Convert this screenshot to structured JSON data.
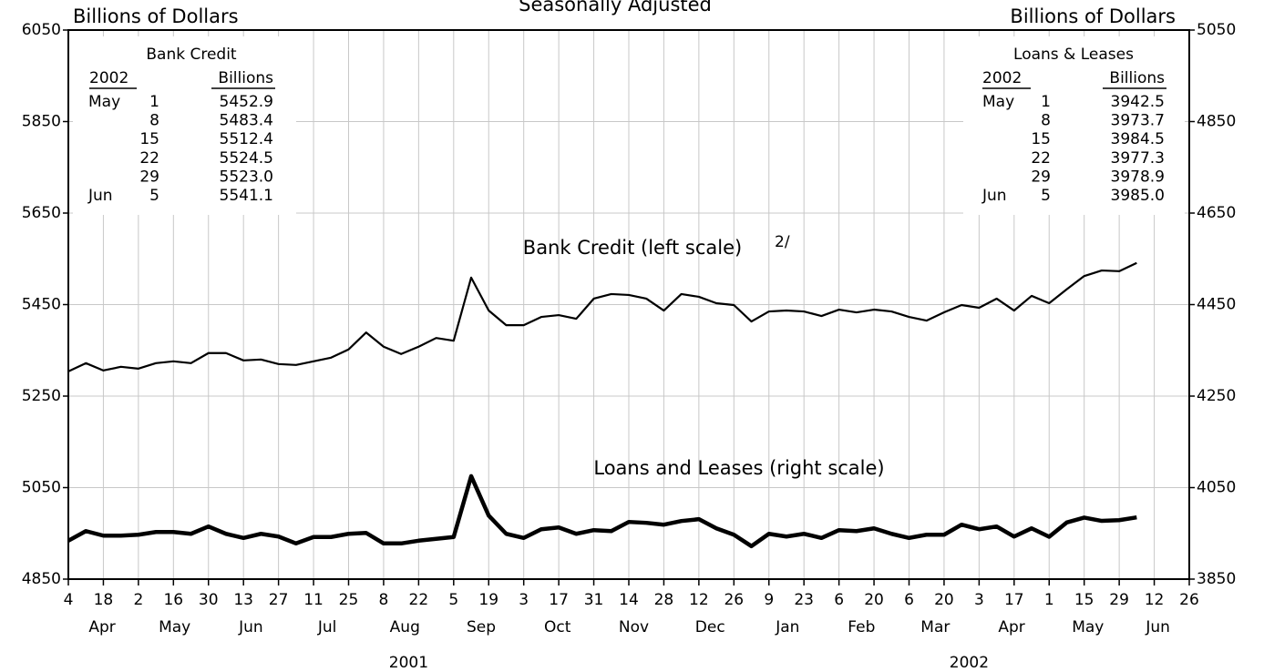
{
  "chart_data": {
    "type": "line",
    "title": "Seasonally Adjusted",
    "y_label": "Billions of Dollars",
    "y2_label": "Billions of Dollars",
    "x": [
      "2001-04-04",
      "2001-04-11",
      "2001-04-18",
      "2001-04-25",
      "2001-05-02",
      "2001-05-09",
      "2001-05-16",
      "2001-05-23",
      "2001-05-30",
      "2001-06-06",
      "2001-06-13",
      "2001-06-20",
      "2001-06-27",
      "2001-07-04",
      "2001-07-11",
      "2001-07-18",
      "2001-07-25",
      "2001-08-01",
      "2001-08-08",
      "2001-08-15",
      "2001-08-22",
      "2001-08-29",
      "2001-09-05",
      "2001-09-12",
      "2001-09-19",
      "2001-09-26",
      "2001-10-03",
      "2001-10-10",
      "2001-10-17",
      "2001-10-24",
      "2001-10-31",
      "2001-11-07",
      "2001-11-14",
      "2001-11-21",
      "2001-11-28",
      "2001-12-05",
      "2001-12-12",
      "2001-12-19",
      "2001-12-26",
      "2002-01-02",
      "2002-01-09",
      "2002-01-16",
      "2002-01-23",
      "2002-01-30",
      "2002-02-06",
      "2002-02-13",
      "2002-02-20",
      "2002-02-27",
      "2002-03-06",
      "2002-03-13",
      "2002-03-20",
      "2002-03-27",
      "2002-04-03",
      "2002-04-10",
      "2002-04-17",
      "2002-04-24",
      "2002-05-01",
      "2002-05-08",
      "2002-05-15",
      "2002-05-22",
      "2002-05-29",
      "2002-06-05"
    ],
    "series": [
      {
        "name": "Bank Credit (left scale)",
        "footnote": "2/",
        "color": "#000000",
        "axis": "y",
        "values": [
          5304,
          5322,
          5306,
          5314,
          5310,
          5322,
          5326,
          5322,
          5344,
          5344,
          5328,
          5330,
          5320,
          5318,
          5326,
          5334,
          5352,
          5389,
          5358,
          5342,
          5358,
          5377,
          5371,
          5509,
          5437,
          5405,
          5405,
          5423,
          5427,
          5419,
          5463,
          5473,
          5471,
          5463,
          5437,
          5473,
          5467,
          5453,
          5449,
          5413,
          5435,
          5437,
          5435,
          5425,
          5439,
          5433,
          5439,
          5435,
          5423,
          5415,
          5433,
          5449,
          5443,
          5463,
          5437,
          5469,
          5452.9,
          5483.4,
          5512.4,
          5524.5,
          5523.0,
          5541.1
        ]
      },
      {
        "name": "Loans and Leases (right scale)",
        "color": "#000000",
        "axis": "y2",
        "values": [
          3934,
          3955,
          3945,
          3945,
          3947,
          3953,
          3953,
          3949,
          3965,
          3949,
          3940,
          3949,
          3943,
          3928,
          3942,
          3942,
          3949,
          3951,
          3928,
          3928,
          3934,
          3938,
          3942,
          4075,
          3989,
          3949,
          3940,
          3959,
          3963,
          3949,
          3957,
          3955,
          3975,
          3973,
          3969,
          3977,
          3981,
          3961,
          3947,
          3922,
          3949,
          3943,
          3949,
          3940,
          3957,
          3955,
          3961,
          3949,
          3940,
          3947,
          3947,
          3969,
          3959,
          3965,
          3943,
          3961,
          3942.5,
          3973.7,
          3984.5,
          3977.3,
          3978.9,
          3985.0
        ]
      }
    ],
    "xlim": [
      "2001-04-04",
      "2002-06-26"
    ],
    "xticks": [
      {
        "value": "2001-04-04",
        "label": "4"
      },
      {
        "value": "2001-04-18",
        "label": "18"
      },
      {
        "value": "2001-05-02",
        "label": "2"
      },
      {
        "value": "2001-05-16",
        "label": "16"
      },
      {
        "value": "2001-05-30",
        "label": "30"
      },
      {
        "value": "2001-06-13",
        "label": "13"
      },
      {
        "value": "2001-06-27",
        "label": "27"
      },
      {
        "value": "2001-07-11",
        "label": "11"
      },
      {
        "value": "2001-07-25",
        "label": "25"
      },
      {
        "value": "2001-08-08",
        "label": "8"
      },
      {
        "value": "2001-08-22",
        "label": "22"
      },
      {
        "value": "2001-09-05",
        "label": "5"
      },
      {
        "value": "2001-09-19",
        "label": "19"
      },
      {
        "value": "2001-10-03",
        "label": "3"
      },
      {
        "value": "2001-10-17",
        "label": "17"
      },
      {
        "value": "2001-10-31",
        "label": "31"
      },
      {
        "value": "2001-11-14",
        "label": "14"
      },
      {
        "value": "2001-11-28",
        "label": "28"
      },
      {
        "value": "2001-12-12",
        "label": "12"
      },
      {
        "value": "2001-12-26",
        "label": "26"
      },
      {
        "value": "2002-01-09",
        "label": "9"
      },
      {
        "value": "2002-01-23",
        "label": "23"
      },
      {
        "value": "2002-02-06",
        "label": "6"
      },
      {
        "value": "2002-02-20",
        "label": "20"
      },
      {
        "value": "2002-03-06",
        "label": "6"
      },
      {
        "value": "2002-03-20",
        "label": "20"
      },
      {
        "value": "2002-04-03",
        "label": "3"
      },
      {
        "value": "2002-04-17",
        "label": "17"
      },
      {
        "value": "2002-05-01",
        "label": "1"
      },
      {
        "value": "2002-05-15",
        "label": "15"
      },
      {
        "value": "2002-05-29",
        "label": "29"
      },
      {
        "value": "2002-06-12",
        "label": "12"
      },
      {
        "value": "2002-06-26",
        "label": "26"
      }
    ],
    "x_months": [
      {
        "value": "2001-04",
        "label": "Apr"
      },
      {
        "value": "2001-05",
        "label": "May"
      },
      {
        "value": "2001-06",
        "label": "Jun"
      },
      {
        "value": "2001-07",
        "label": "Jul"
      },
      {
        "value": "2001-08",
        "label": "Aug"
      },
      {
        "value": "2001-09",
        "label": "Sep"
      },
      {
        "value": "2001-10",
        "label": "Oct"
      },
      {
        "value": "2001-11",
        "label": "Nov"
      },
      {
        "value": "2001-12",
        "label": "Dec"
      },
      {
        "value": "2002-01",
        "label": "Jan"
      },
      {
        "value": "2002-02",
        "label": "Feb"
      },
      {
        "value": "2002-03",
        "label": "Mar"
      },
      {
        "value": "2002-04",
        "label": "Apr"
      },
      {
        "value": "2002-05",
        "label": "May"
      },
      {
        "value": "2002-06",
        "label": "Jun"
      }
    ],
    "x_years": [
      2001,
      2002
    ],
    "ylim": [
      4850,
      6050
    ],
    "yticks": [
      4850,
      5050,
      5250,
      5450,
      5650,
      5850,
      6050
    ],
    "y2lim": [
      3850,
      5050
    ],
    "y2ticks": [
      3850,
      4050,
      4250,
      4450,
      4650,
      4850,
      5050
    ],
    "grid": true,
    "tables": [
      {
        "title": "Bank Credit",
        "year": "2002",
        "unit": "Billions",
        "rows": [
          [
            "May",
            "1",
            "5452.9"
          ],
          [
            "",
            "8",
            "5483.4"
          ],
          [
            "",
            "15",
            "5512.4"
          ],
          [
            "",
            "22",
            "5524.5"
          ],
          [
            "",
            "29",
            "5523.0"
          ],
          [
            "Jun",
            "5",
            "5541.1"
          ]
        ]
      },
      {
        "title": "Loans & Leases",
        "year": "2002",
        "unit": "Billions",
        "rows": [
          [
            "May",
            "1",
            "3942.5"
          ],
          [
            "",
            "8",
            "3973.7"
          ],
          [
            "",
            "15",
            "3984.5"
          ],
          [
            "",
            "22",
            "3977.3"
          ],
          [
            "",
            "29",
            "3978.9"
          ],
          [
            "Jun",
            "5",
            "3985.0"
          ]
        ]
      }
    ]
  }
}
